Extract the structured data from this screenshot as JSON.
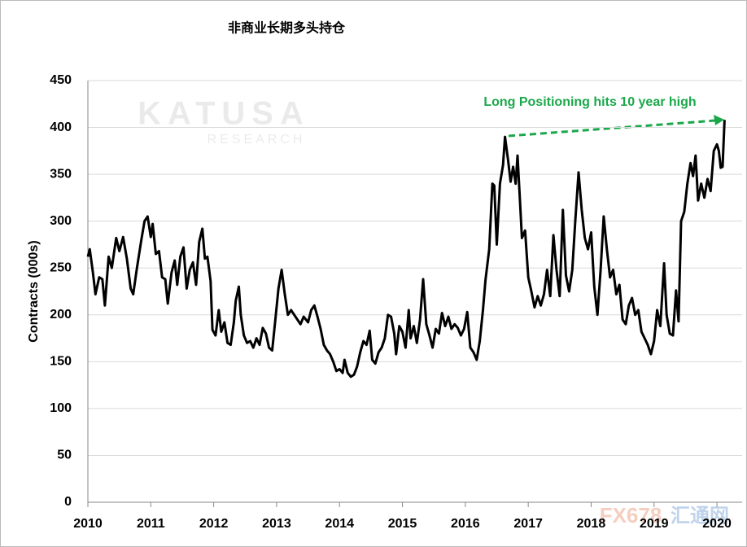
{
  "chart_data": {
    "type": "line",
    "title": "非商业长期多头持仓",
    "y_label": "Contracts (000s)",
    "annotation": "Long Positioning  hits 10 year high",
    "watermarks": [
      "KATUSA",
      "RESEARCH",
      "FX678",
      "汇通网"
    ],
    "xlim": [
      2010,
      2020.4
    ],
    "xticks": [
      2010,
      2011,
      2012,
      2013,
      2014,
      2015,
      2016,
      2017,
      2018,
      2019,
      2020
    ],
    "ylim": [
      0,
      450
    ],
    "yticks": [
      0,
      50,
      100,
      150,
      200,
      250,
      300,
      350,
      400,
      450
    ],
    "grid": true,
    "series": [
      {
        "color": "#000000",
        "x": [
          2010.0,
          2010.03,
          2010.08,
          2010.12,
          2010.18,
          2010.23,
          2010.27,
          2010.33,
          2010.38,
          2010.45,
          2010.5,
          2010.56,
          2010.62,
          2010.68,
          2010.72,
          2010.78,
          2010.85,
          2010.9,
          2010.95,
          2011.0,
          2011.03,
          2011.08,
          2011.13,
          2011.18,
          2011.23,
          2011.27,
          2011.33,
          2011.38,
          2011.42,
          2011.47,
          2011.52,
          2011.57,
          2011.62,
          2011.67,
          2011.72,
          2011.77,
          2011.82,
          2011.86,
          2011.9,
          2011.95,
          2011.98,
          2012.03,
          2012.08,
          2012.12,
          2012.17,
          2012.22,
          2012.27,
          2012.32,
          2012.35,
          2012.4,
          2012.43,
          2012.48,
          2012.53,
          2012.58,
          2012.63,
          2012.68,
          2012.73,
          2012.78,
          2012.83,
          2012.88,
          2012.93,
          2012.98,
          2013.03,
          2013.08,
          2013.13,
          2013.18,
          2013.23,
          2013.28,
          2013.33,
          2013.38,
          2013.43,
          2013.5,
          2013.55,
          2013.6,
          2013.65,
          2013.7,
          2013.75,
          2013.8,
          2013.85,
          2013.9,
          2013.95,
          2014.0,
          2014.05,
          2014.08,
          2014.13,
          2014.18,
          2014.23,
          2014.28,
          2014.33,
          2014.38,
          2014.43,
          2014.48,
          2014.52,
          2014.57,
          2014.62,
          2014.67,
          2014.72,
          2014.77,
          2014.82,
          2014.87,
          2014.9,
          2014.95,
          2015.0,
          2015.05,
          2015.1,
          2015.13,
          2015.18,
          2015.23,
          2015.28,
          2015.33,
          2015.38,
          2015.43,
          2015.48,
          2015.53,
          2015.58,
          2015.63,
          2015.68,
          2015.73,
          2015.78,
          2015.83,
          2015.88,
          2015.93,
          2015.98,
          2016.03,
          2016.08,
          2016.13,
          2016.18,
          2016.23,
          2016.28,
          2016.32,
          2016.38,
          2016.43,
          2016.46,
          2016.5,
          2016.55,
          2016.6,
          2016.63,
          2016.68,
          2016.72,
          2016.76,
          2016.8,
          2016.83,
          2016.87,
          2016.9,
          2016.95,
          2017.0,
          2017.05,
          2017.1,
          2017.15,
          2017.2,
          2017.25,
          2017.3,
          2017.35,
          2017.4,
          2017.45,
          2017.5,
          2017.55,
          2017.6,
          2017.65,
          2017.7,
          2017.75,
          2017.8,
          2017.85,
          2017.9,
          2017.95,
          2018.0,
          2018.05,
          2018.1,
          2018.15,
          2018.2,
          2018.25,
          2018.3,
          2018.35,
          2018.4,
          2018.45,
          2018.5,
          2018.55,
          2018.6,
          2018.65,
          2018.7,
          2018.75,
          2018.8,
          2018.85,
          2018.9,
          2018.95,
          2019.0,
          2019.05,
          2019.1,
          2019.16,
          2019.2,
          2019.25,
          2019.3,
          2019.35,
          2019.39,
          2019.43,
          2019.48,
          2019.53,
          2019.58,
          2019.62,
          2019.66,
          2019.7,
          2019.75,
          2019.8,
          2019.85,
          2019.9,
          2019.95,
          2020.0,
          2020.03,
          2020.06,
          2020.09,
          2020.12
        ],
        "values": [
          262,
          270,
          245,
          222,
          240,
          238,
          210,
          262,
          250,
          282,
          268,
          283,
          260,
          228,
          222,
          250,
          280,
          300,
          305,
          283,
          297,
          265,
          268,
          240,
          238,
          212,
          245,
          258,
          232,
          262,
          272,
          228,
          248,
          256,
          232,
          278,
          292,
          260,
          262,
          236,
          184,
          178,
          205,
          182,
          192,
          170,
          168,
          192,
          215,
          230,
          200,
          178,
          170,
          172,
          165,
          175,
          168,
          186,
          180,
          165,
          162,
          195,
          228,
          248,
          222,
          200,
          205,
          200,
          195,
          190,
          198,
          192,
          205,
          210,
          198,
          185,
          168,
          162,
          158,
          150,
          140,
          142,
          138,
          152,
          138,
          134,
          136,
          145,
          160,
          172,
          168,
          183,
          152,
          148,
          160,
          165,
          175,
          200,
          198,
          180,
          158,
          188,
          182,
          165,
          205,
          175,
          188,
          170,
          195,
          238,
          190,
          178,
          165,
          185,
          180,
          202,
          188,
          198,
          185,
          190,
          186,
          178,
          185,
          203,
          165,
          160,
          152,
          172,
          205,
          237,
          270,
          340,
          338,
          275,
          340,
          360,
          390,
          365,
          342,
          358,
          340,
          370,
          320,
          282,
          290,
          240,
          225,
          208,
          220,
          210,
          222,
          248,
          220,
          285,
          248,
          220,
          312,
          242,
          225,
          248,
          302,
          352,
          312,
          282,
          270,
          288,
          230,
          200,
          248,
          305,
          270,
          240,
          248,
          222,
          232,
          195,
          190,
          210,
          218,
          200,
          205,
          182,
          175,
          168,
          158,
          172,
          205,
          188,
          255,
          200,
          180,
          178,
          226,
          193,
          300,
          310,
          340,
          362,
          348,
          370,
          322,
          340,
          325,
          345,
          332,
          375,
          382,
          375,
          357,
          358,
          408
        ]
      }
    ]
  }
}
